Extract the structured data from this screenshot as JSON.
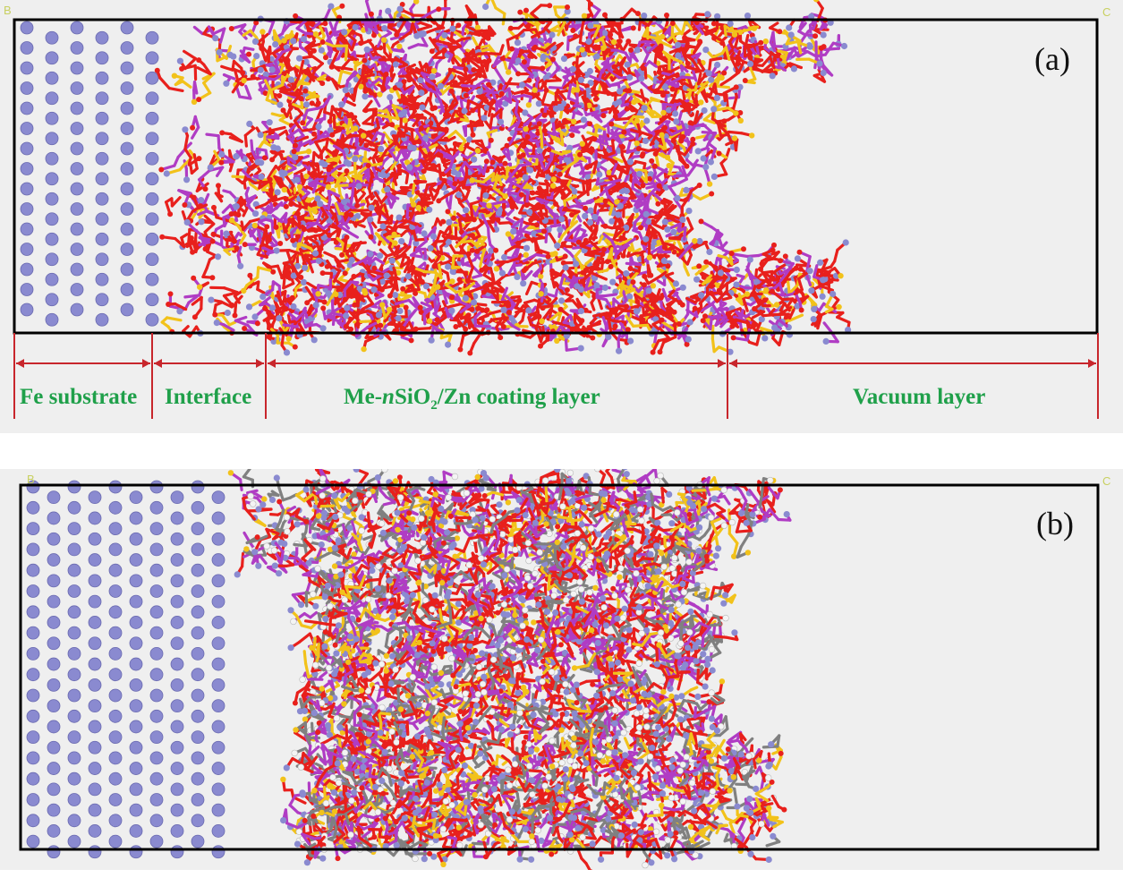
{
  "panel_a": {
    "label": "(a)",
    "corner_left": "B",
    "corner_right": "C",
    "regions": {
      "fe_substrate": "Fe substrate",
      "interface": "Interface",
      "coating_prefix": "Me-",
      "coating_n": "n",
      "coating_sio": "SiO",
      "coating_sub": "2",
      "coating_suffix": "/Zn coating layer",
      "vacuum": "Vacuum layer"
    }
  },
  "panel_b": {
    "label": "(b)",
    "corner_left": "B",
    "corner_right": "C"
  },
  "colors": {
    "fe_atom": "#8a8ad0",
    "oxygen": "#e8201c",
    "silicon": "#f2c21a",
    "zinc": "#b03cc4",
    "carbon": "#808080",
    "hydrogen": "#f4f4f4",
    "dimension_line": "#c8262c",
    "region_text": "#1fa04a",
    "box_border": "#000000"
  }
}
